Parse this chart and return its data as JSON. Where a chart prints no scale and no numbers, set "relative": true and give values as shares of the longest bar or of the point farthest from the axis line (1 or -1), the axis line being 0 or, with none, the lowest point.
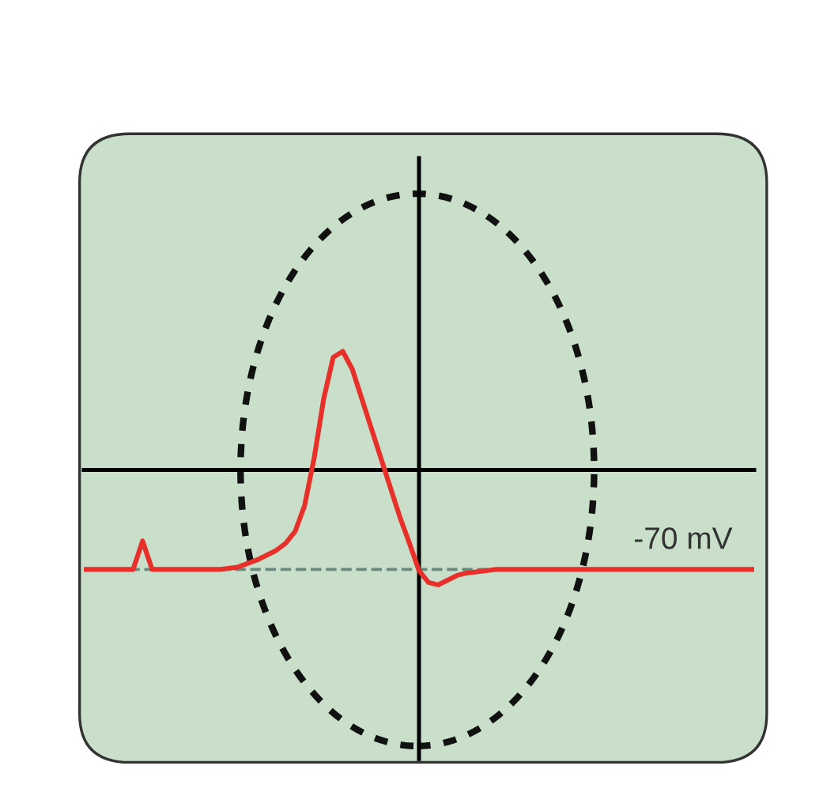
{
  "chart_data": {
    "type": "line",
    "relative": true,
    "line_style": "solid",
    "categories": [
      null,
      null,
      null,
      null,
      null,
      null,
      null,
      null,
      null,
      null,
      null,
      null,
      null,
      null,
      null,
      null,
      null,
      null,
      null,
      null,
      null,
      null,
      null,
      null,
      null,
      null,
      null,
      null,
      null,
      null,
      null,
      null,
      null,
      null,
      null,
      null,
      null,
      null,
      null,
      null,
      null,
      null,
      null,
      null,
      null,
      null,
      null,
      null,
      null,
      null,
      null,
      null,
      null,
      null,
      null,
      null,
      null,
      null,
      null,
      null,
      null,
      null,
      null,
      null,
      null,
      null,
      null,
      null,
      null,
      null,
      null
    ],
    "series": [
      {
        "color": "#e8302a",
        "values": [
          -0.84,
          -0.84,
          -0.84,
          -0.84,
          -0.84,
          -0.84,
          -0.6,
          -0.84,
          -0.84,
          -0.84,
          -0.84,
          -0.84,
          -0.84,
          -0.84,
          -0.84,
          -0.83,
          -0.82,
          -0.79,
          -0.76,
          -0.72,
          -0.68,
          -0.62,
          -0.52,
          -0.3,
          0.1,
          0.6,
          0.95,
          1,
          0.85,
          0.6,
          0.35,
          0.1,
          -0.15,
          -0.4,
          -0.62,
          -0.85,
          -0.95,
          -0.97,
          -0.93,
          -0.89,
          -0.87,
          -0.86,
          -0.85,
          -0.84,
          -0.84,
          -0.84,
          -0.84,
          -0.84,
          -0.84,
          -0.84,
          -0.84,
          -0.84,
          -0.84,
          -0.84,
          -0.84,
          -0.84,
          -0.84,
          -0.84,
          -0.84,
          -0.84,
          -0.84,
          -0.84,
          -0.84,
          -0.84,
          -0.84,
          -0.84,
          -0.84,
          -0.84,
          -0.84,
          -0.84,
          -0.84
        ]
      }
    ],
    "ref_lines": [
      {
        "axis": "y",
        "value": -0.84,
        "label": "-70 mV",
        "color": "#6a8a80",
        "line_style": "dashed"
      }
    ]
  }
}
